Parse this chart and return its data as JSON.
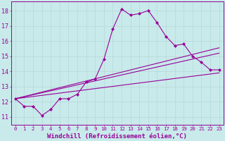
{
  "background_color": "#c8eaea",
  "grid_color": "#b8d8d8",
  "line_color": "#990099",
  "marker": "D",
  "marker_size": 2.2,
  "xlabel": "Windchill (Refroidissement éolien,°C)",
  "xlabel_fontsize": 6.5,
  "ylabel_ticks": [
    11,
    12,
    13,
    14,
    15,
    16,
    17,
    18
  ],
  "xlim": [
    -0.5,
    23.5
  ],
  "ylim": [
    10.5,
    18.6
  ],
  "curve1_x": [
    0,
    1,
    2,
    3,
    4,
    5,
    6,
    7,
    8,
    9,
    10,
    11,
    12,
    13,
    14,
    15,
    16,
    17,
    18,
    19,
    20,
    21,
    22,
    23
  ],
  "curve1_y": [
    12.2,
    11.7,
    11.7,
    11.1,
    11.5,
    12.2,
    12.2,
    12.5,
    13.3,
    13.5,
    14.8,
    16.8,
    18.1,
    17.7,
    17.8,
    18.0,
    17.2,
    16.3,
    15.7,
    15.8,
    15.0,
    14.6,
    14.1,
    14.1
  ],
  "curve2_x": [
    0,
    23
  ],
  "curve2_y": [
    12.2,
    13.9
  ],
  "curve3_x": [
    0,
    23
  ],
  "curve3_y": [
    12.2,
    15.2
  ],
  "curve4_x": [
    0,
    23
  ],
  "curve4_y": [
    12.2,
    15.55
  ],
  "xtick_labels": [
    "0",
    "1",
    "2",
    "3",
    "4",
    "5",
    "6",
    "7",
    "8",
    "9",
    "10",
    "11",
    "12",
    "13",
    "14",
    "15",
    "16",
    "17",
    "18",
    "19",
    "20",
    "21",
    "22",
    "23"
  ],
  "tick_fontsize": 5.2,
  "ytick_fontsize": 6.0
}
